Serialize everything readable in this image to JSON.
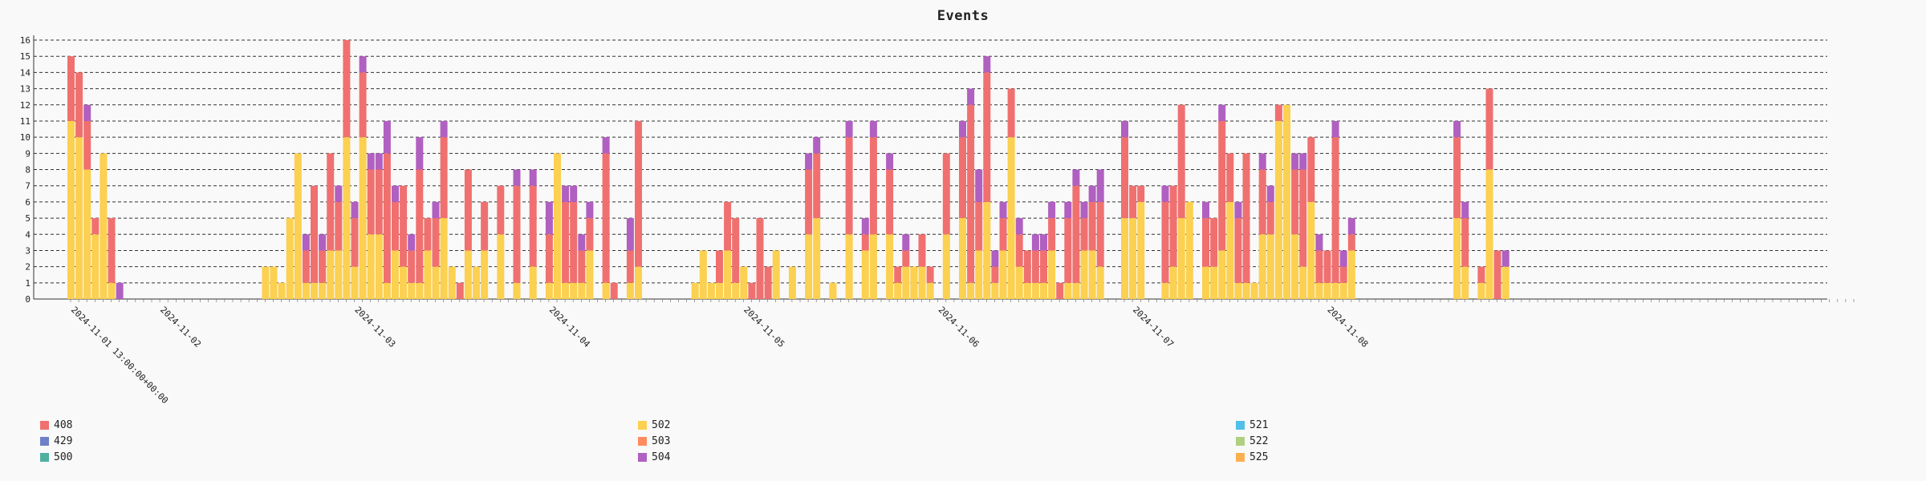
{
  "chart_data": {
    "type": "bar",
    "stacked": true,
    "title": "Events",
    "xlabel": "",
    "ylabel": "",
    "ylim": [
      0,
      16
    ],
    "yticks": [
      0,
      1,
      2,
      3,
      4,
      5,
      6,
      7,
      8,
      9,
      10,
      11,
      12,
      13,
      14,
      15,
      16
    ],
    "grid": "horizontal dashed",
    "legend_position": "bottom",
    "colors": {
      "408": "#f07070",
      "429": "#7080c8",
      "500": "#50b0a0",
      "502": "#fcd050",
      "503": "#ff8c60",
      "504": "#b060c0",
      "521": "#50c0e8",
      "522": "#b0d080",
      "525": "#fbb050"
    },
    "legend_order": [
      "408",
      "429",
      "500",
      "502",
      "503",
      "504",
      "521",
      "522",
      "525"
    ],
    "x_start": "2024-11-01 13:00:00",
    "date_tick_labels": [
      {
        "hour_index": 0,
        "label": "2024-11-01 13:00:00+00:00"
      },
      {
        "hour_index": 11,
        "label": "2024-11-02"
      },
      {
        "hour_index": 35,
        "label": "2024-11-03"
      },
      {
        "hour_index": 59,
        "label": "2024-11-04"
      },
      {
        "hour_index": 83,
        "label": "2024-11-05"
      },
      {
        "hour_index": 107,
        "label": "2024-11-06"
      },
      {
        "hour_index": 131,
        "label": "2024-11-07"
      },
      {
        "hour_index": 155,
        "label": "2024-11-08"
      }
    ],
    "hours": [
      {
        "h": 0,
        "502": 11,
        "408": 4
      },
      {
        "h": 1,
        "502": 10,
        "408": 4
      },
      {
        "h": 2,
        "502": 8,
        "408": 3,
        "504": 1
      },
      {
        "h": 3,
        "502": 4,
        "408": 1
      },
      {
        "h": 4,
        "502": 9
      },
      {
        "h": 5,
        "502": 1,
        "408": 4
      },
      {
        "h": 6,
        "504": 1
      },
      {
        "h": 24,
        "502": 2
      },
      {
        "h": 25,
        "502": 2
      },
      {
        "h": 26,
        "502": 1
      },
      {
        "h": 27,
        "502": 5
      },
      {
        "h": 28,
        "502": 9
      },
      {
        "h": 29,
        "502": 1,
        "408": 2,
        "504": 1
      },
      {
        "h": 30,
        "502": 1,
        "408": 6
      },
      {
        "h": 31,
        "502": 1,
        "408": 2,
        "504": 1
      },
      {
        "h": 32,
        "502": 3,
        "408": 6
      },
      {
        "h": 33,
        "502": 3,
        "408": 3,
        "504": 1
      },
      {
        "h": 34,
        "502": 10,
        "408": 6
      },
      {
        "h": 35,
        "502": 2,
        "408": 3,
        "504": 1
      },
      {
        "h": 36,
        "502": 10,
        "408": 4,
        "504": 1
      },
      {
        "h": 37,
        "502": 4,
        "408": 4,
        "504": 1
      },
      {
        "h": 38,
        "502": 4,
        "408": 4,
        "504": 1
      },
      {
        "h": 39,
        "502": 1,
        "408": 8,
        "504": 2
      },
      {
        "h": 40,
        "502": 3,
        "408": 3,
        "504": 1
      },
      {
        "h": 41,
        "502": 2,
        "408": 5
      },
      {
        "h": 42,
        "502": 1,
        "408": 2,
        "504": 1
      },
      {
        "h": 43,
        "502": 1,
        "408": 7,
        "504": 2
      },
      {
        "h": 44,
        "502": 3,
        "408": 2
      },
      {
        "h": 45,
        "502": 2,
        "408": 3,
        "504": 1
      },
      {
        "h": 46,
        "502": 5,
        "408": 5,
        "504": 1
      },
      {
        "h": 47,
        "502": 2
      },
      {
        "h": 48,
        "408": 1
      },
      {
        "h": 49,
        "502": 3,
        "408": 5
      },
      {
        "h": 50,
        "502": 2
      },
      {
        "h": 51,
        "502": 3,
        "408": 3
      },
      {
        "h": 53,
        "502": 4,
        "408": 3
      },
      {
        "h": 55,
        "502": 1,
        "408": 6,
        "504": 1
      },
      {
        "h": 57,
        "502": 2,
        "408": 5,
        "504": 1
      },
      {
        "h": 59,
        "502": 1,
        "408": 3,
        "504": 2
      },
      {
        "h": 60,
        "502": 9
      },
      {
        "h": 61,
        "502": 1,
        "408": 5,
        "504": 1
      },
      {
        "h": 62,
        "502": 1,
        "408": 5,
        "504": 1
      },
      {
        "h": 63,
        "502": 1,
        "408": 2,
        "504": 1
      },
      {
        "h": 64,
        "502": 3,
        "408": 2,
        "504": 1
      },
      {
        "h": 66,
        "502": 1,
        "408": 8,
        "504": 1
      },
      {
        "h": 67,
        "408": 1
      },
      {
        "h": 69,
        "502": 1,
        "408": 2,
        "504": 2
      },
      {
        "h": 70,
        "502": 2,
        "408": 9
      },
      {
        "h": 77,
        "502": 1
      },
      {
        "h": 78,
        "502": 3
      },
      {
        "h": 79,
        "502": 1
      },
      {
        "h": 80,
        "502": 1,
        "408": 2
      },
      {
        "h": 81,
        "502": 3,
        "408": 3
      },
      {
        "h": 82,
        "502": 1,
        "408": 4
      },
      {
        "h": 83,
        "502": 2
      },
      {
        "h": 84,
        "408": 1
      },
      {
        "h": 85,
        "408": 5
      },
      {
        "h": 86,
        "408": 2
      },
      {
        "h": 87,
        "502": 3
      },
      {
        "h": 89,
        "502": 2
      },
      {
        "h": 91,
        "502": 4,
        "408": 4,
        "504": 1
      },
      {
        "h": 92,
        "502": 5,
        "408": 4,
        "504": 1
      },
      {
        "h": 94,
        "502": 1
      },
      {
        "h": 96,
        "502": 4,
        "408": 6,
        "504": 1
      },
      {
        "h": 98,
        "502": 3,
        "408": 1,
        "504": 1
      },
      {
        "h": 99,
        "502": 4,
        "408": 6,
        "504": 1
      },
      {
        "h": 101,
        "502": 4,
        "408": 4,
        "504": 1
      },
      {
        "h": 102,
        "502": 1,
        "408": 1
      },
      {
        "h": 103,
        "502": 2,
        "408": 1,
        "504": 1
      },
      {
        "h": 104,
        "502": 2
      },
      {
        "h": 105,
        "502": 2,
        "408": 2
      },
      {
        "h": 106,
        "502": 1,
        "408": 1
      },
      {
        "h": 108,
        "502": 4,
        "408": 5
      },
      {
        "h": 110,
        "502": 5,
        "408": 5,
        "504": 1
      },
      {
        "h": 111,
        "502": 1,
        "408": 11,
        "504": 1
      },
      {
        "h": 112,
        "502": 3,
        "408": 3,
        "504": 2
      },
      {
        "h": 113,
        "502": 6,
        "408": 8,
        "504": 1
      },
      {
        "h": 114,
        "502": 1,
        "408": 1,
        "504": 1
      },
      {
        "h": 115,
        "502": 3,
        "408": 2,
        "504": 1
      },
      {
        "h": 116,
        "502": 10,
        "408": 3
      },
      {
        "h": 117,
        "502": 2,
        "408": 2,
        "504": 1
      },
      {
        "h": 118,
        "502": 1,
        "408": 2
      },
      {
        "h": 119,
        "502": 1,
        "408": 2,
        "504": 1
      },
      {
        "h": 120,
        "502": 1,
        "408": 2,
        "504": 1
      },
      {
        "h": 121,
        "502": 3,
        "408": 2,
        "504": 1
      },
      {
        "h": 122,
        "408": 1
      },
      {
        "h": 123,
        "502": 1,
        "408": 4,
        "504": 1
      },
      {
        "h": 124,
        "502": 1,
        "408": 6,
        "504": 1
      },
      {
        "h": 125,
        "502": 3,
        "408": 2,
        "504": 1
      },
      {
        "h": 126,
        "502": 3,
        "408": 3,
        "504": 1
      },
      {
        "h": 127,
        "502": 2,
        "408": 4,
        "504": 2
      },
      {
        "h": 130,
        "502": 5,
        "408": 5,
        "504": 1
      },
      {
        "h": 131,
        "502": 5,
        "408": 2
      },
      {
        "h": 132,
        "502": 6,
        "408": 1
      },
      {
        "h": 135,
        "502": 1,
        "408": 5,
        "504": 1
      },
      {
        "h": 136,
        "502": 2,
        "408": 5
      },
      {
        "h": 137,
        "502": 5,
        "408": 7
      },
      {
        "h": 138,
        "502": 6
      },
      {
        "h": 140,
        "502": 2,
        "408": 3,
        "504": 1
      },
      {
        "h": 141,
        "502": 2,
        "408": 3
      },
      {
        "h": 142,
        "502": 3,
        "408": 8,
        "504": 1
      },
      {
        "h": 143,
        "502": 6,
        "408": 3
      },
      {
        "h": 144,
        "502": 1,
        "408": 4,
        "504": 1
      },
      {
        "h": 145,
        "502": 1,
        "408": 8
      },
      {
        "h": 146,
        "502": 1
      },
      {
        "h": 147,
        "502": 4,
        "408": 4,
        "504": 1
      },
      {
        "h": 148,
        "502": 4,
        "408": 2,
        "504": 1
      },
      {
        "h": 149,
        "502": 11,
        "408": 1
      },
      {
        "h": 150,
        "502": 12
      },
      {
        "h": 151,
        "502": 4,
        "408": 4,
        "504": 1
      },
      {
        "h": 152,
        "502": 2,
        "408": 6,
        "504": 1
      },
      {
        "h": 153,
        "502": 6,
        "408": 4
      },
      {
        "h": 154,
        "502": 1,
        "408": 2,
        "504": 1
      },
      {
        "h": 155,
        "502": 1,
        "408": 2
      },
      {
        "h": 156,
        "502": 1,
        "408": 9,
        "504": 1
      },
      {
        "h": 157,
        "502": 1,
        "408": 1,
        "504": 1
      },
      {
        "h": 158,
        "502": 3,
        "408": 1,
        "504": 1
      },
      {
        "h": 171,
        "502": 5,
        "408": 5,
        "504": 1
      },
      {
        "h": 172,
        "502": 2,
        "408": 3,
        "504": 1
      },
      {
        "h": 174,
        "502": 1,
        "408": 1
      },
      {
        "h": 175,
        "502": 8,
        "408": 5
      },
      {
        "h": 176,
        "502": 0,
        "408": 3
      },
      {
        "h": 177,
        "502": 2,
        "408": 0,
        "504": 1
      }
    ]
  },
  "legend": {
    "items": [
      {
        "label": "408",
        "color": "#f07070"
      },
      {
        "label": "429",
        "color": "#7080c8"
      },
      {
        "label": "500",
        "color": "#50b0a0"
      },
      {
        "label": "502",
        "color": "#fcd050"
      },
      {
        "label": "503",
        "color": "#ff8c60"
      },
      {
        "label": "504",
        "color": "#b060c0"
      },
      {
        "label": "521",
        "color": "#50c0e8"
      },
      {
        "label": "522",
        "color": "#b0d080"
      },
      {
        "label": "525",
        "color": "#fbb050"
      }
    ]
  }
}
